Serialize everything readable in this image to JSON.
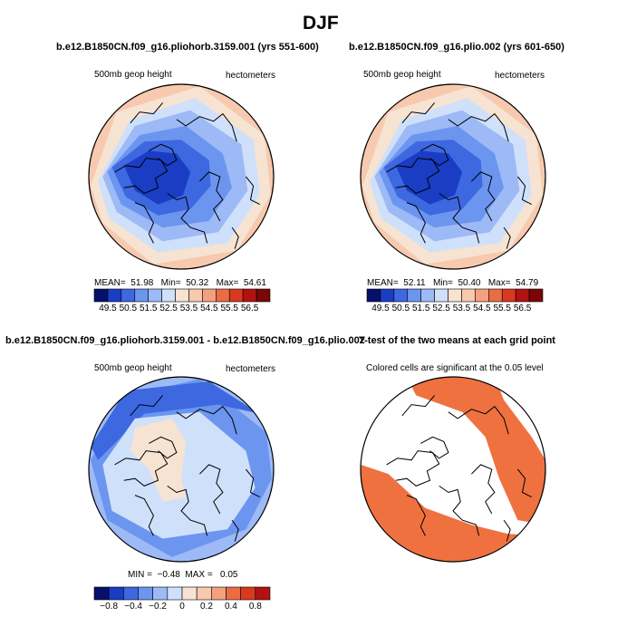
{
  "figure": {
    "title": "DJF"
  },
  "colors": {
    "palette": [
      "#05106b",
      "#1a3dc4",
      "#3d68e0",
      "#6b95ef",
      "#9dbaf6",
      "#cfe0fb",
      "#f6e3d2",
      "#f7c9ae",
      "#f3a07f",
      "#ea6c44",
      "#d8391f",
      "#b31212",
      "#7a0606"
    ],
    "land_outline": "#000000",
    "sig_color": "#ef7140"
  },
  "chart_data": [
    {
      "type": "heatmap",
      "id": "panel1",
      "title": "b.e12.B1850CN.f09_g16.pliohorb.3159.001 (yrs 551-600)",
      "left_label": "500mb geop height",
      "right_label": "hectometers",
      "stats": {
        "mean_label": "MEAN=",
        "mean": "51.98",
        "min_label": "Min=",
        "min": "50.32",
        "max_label": "Max=",
        "max": "54.61"
      },
      "colorbar": {
        "ticks": [
          "49.5",
          "50.5",
          "51.5",
          "52.5",
          "53.5",
          "54.5",
          "55.5",
          "56.5"
        ]
      }
    },
    {
      "type": "heatmap",
      "id": "panel2",
      "title": "b.e12.B1850CN.f09_g16.plio.002 (yrs 601-650)",
      "left_label": "500mb geop height",
      "right_label": "hectometers",
      "stats": {
        "mean_label": "MEAN=",
        "mean": "52.11",
        "min_label": "Min=",
        "min": "50.40",
        "max_label": "Max=",
        "max": "54.79"
      },
      "colorbar": {
        "ticks": [
          "49.5",
          "50.5",
          "51.5",
          "52.5",
          "53.5",
          "54.5",
          "55.5",
          "56.5"
        ]
      }
    },
    {
      "type": "heatmap",
      "id": "panel3",
      "title": "b.e12.B1850CN.f09_g16.pliohorb.3159.001 - b.e12.B1850CN.f09_g16.plio.002",
      "left_label": "500mb geop height",
      "right_label": "hectometers",
      "stats": {
        "min_label": "MIN =",
        "min": "−0.48",
        "max_label": "MAX =",
        "max": "0.05"
      },
      "colorbar": {
        "ticks": [
          "−0.8",
          "−0.4",
          "−0.2",
          "0",
          "0.2",
          "0.4",
          "0.8"
        ]
      }
    },
    {
      "type": "heatmap",
      "id": "panel4",
      "title": "T-test of the two means at each grid point",
      "left_label": "Colored cells are significant at the 0.05 level"
    }
  ]
}
